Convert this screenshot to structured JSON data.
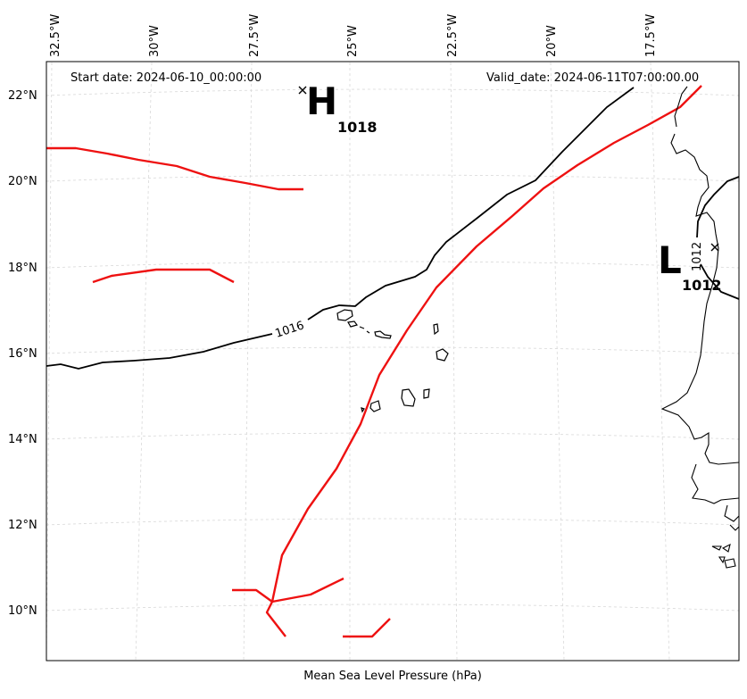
{
  "header": {
    "start_date": "Start date: 2024-06-10_00:00:00",
    "valid_date": "Valid_date: 2024-06-11T07:00:00.00"
  },
  "axes": {
    "xlabel": "Mean Sea Level Pressure (hPa)",
    "lon_ticks": [
      "32.5°W",
      "30°W",
      "27.5°W",
      "25°W",
      "22.5°W",
      "20°W",
      "17.5°W"
    ],
    "lat_ticks": [
      "22°N",
      "20°N",
      "18°N",
      "16°N",
      "14°N",
      "12°N",
      "10°N"
    ],
    "grid": "dashed light gray"
  },
  "map": {
    "high": {
      "letter": "H",
      "value": "1018"
    },
    "low": {
      "letter": "L",
      "value": "1012"
    },
    "contour_labels": [
      "1016",
      "1012"
    ],
    "colors": {
      "isobar": "#000000",
      "front": "#ee1111",
      "coast": "#000000",
      "grid": "#d8d8d8"
    }
  }
}
